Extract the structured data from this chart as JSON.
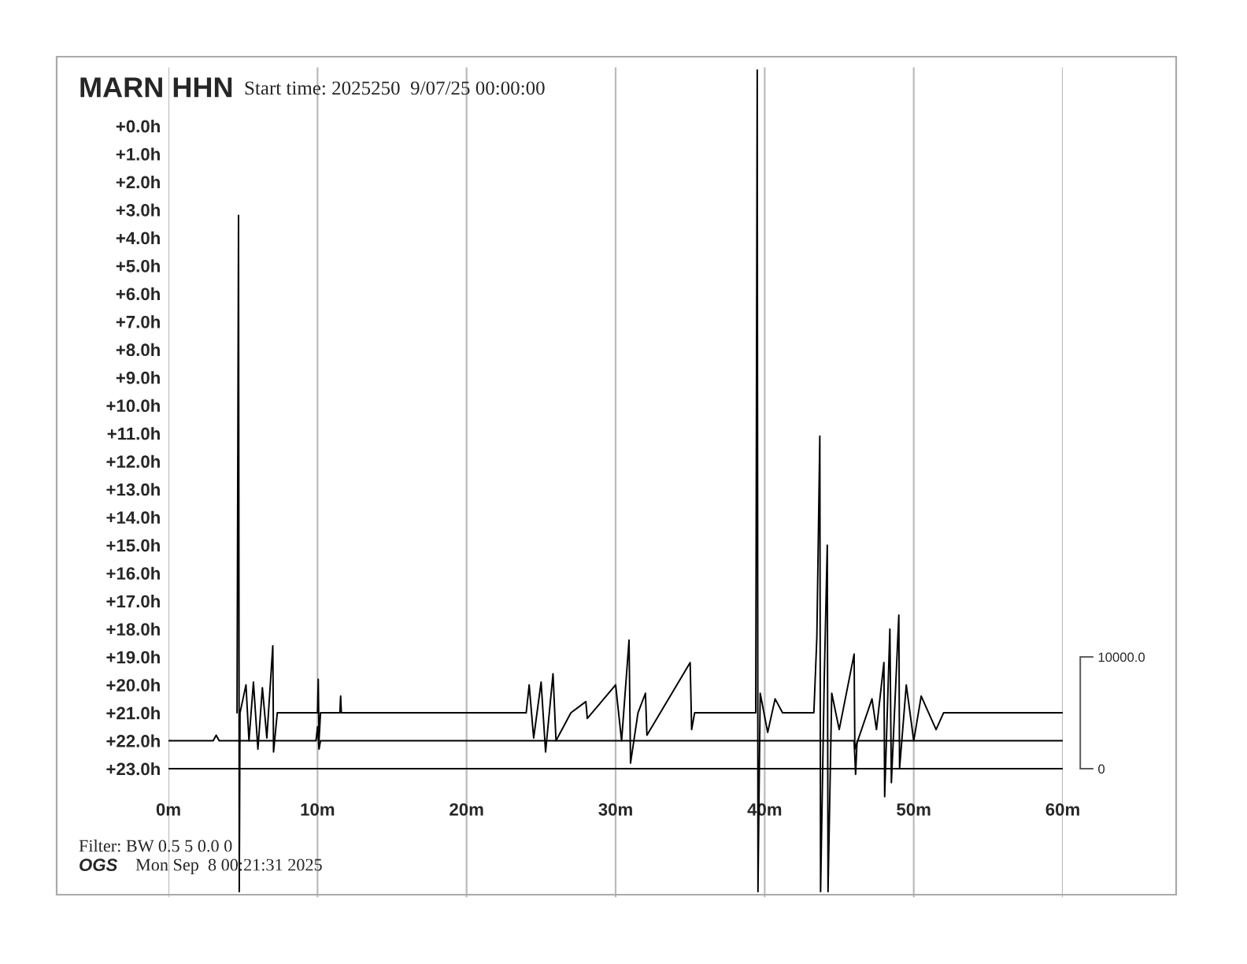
{
  "chart_data": {
    "type": "line",
    "title": "MARN HHN",
    "subtitle": "Start time: 2025250  9/07/25 00:00:00",
    "annotations": [
      "Filter: BW 0.5 5 0.0 0",
      "OGS",
      "Mon Sep  8 00:21:31 2025"
    ],
    "xlim": [
      0,
      60
    ],
    "xticks": [
      {
        "value": 0,
        "label": "0m"
      },
      {
        "value": 10,
        "label": "10m"
      },
      {
        "value": 20,
        "label": "20m"
      },
      {
        "value": 30,
        "label": "30m"
      },
      {
        "value": 40,
        "label": "40m"
      },
      {
        "value": 50,
        "label": "50m"
      },
      {
        "value": 60,
        "label": "60m"
      }
    ],
    "ylim": [
      27.6,
      -2.1
    ],
    "yticks": [
      {
        "value": 0,
        "label": "+0.0h"
      },
      {
        "value": 1,
        "label": "+1.0h"
      },
      {
        "value": 2,
        "label": "+2.0h"
      },
      {
        "value": 3,
        "label": "+3.0h"
      },
      {
        "value": 4,
        "label": "+4.0h"
      },
      {
        "value": 5,
        "label": "+5.0h"
      },
      {
        "value": 6,
        "label": "+6.0h"
      },
      {
        "value": 7,
        "label": "+7.0h"
      },
      {
        "value": 8,
        "label": "+8.0h"
      },
      {
        "value": 9,
        "label": "+9.0h"
      },
      {
        "value": 10,
        "label": "+10.0h"
      },
      {
        "value": 11,
        "label": "+11.0h"
      },
      {
        "value": 12,
        "label": "+12.0h"
      },
      {
        "value": 13,
        "label": "+13.0h"
      },
      {
        "value": 14,
        "label": "+14.0h"
      },
      {
        "value": 15,
        "label": "+15.0h"
      },
      {
        "value": 16,
        "label": "+16.0h"
      },
      {
        "value": 17,
        "label": "+17.0h"
      },
      {
        "value": 18,
        "label": "+18.0h"
      },
      {
        "value": 19,
        "label": "+19.0h"
      },
      {
        "value": 20,
        "label": "+20.0h"
      },
      {
        "value": 21,
        "label": "+21.0h"
      },
      {
        "value": 22,
        "label": "+22.0h"
      },
      {
        "value": 23,
        "label": "+23.0h"
      }
    ],
    "y2lim": [
      -11500,
      62750
    ],
    "y2ticks": [
      {
        "value": 0,
        "label": "0"
      },
      {
        "value": 10000,
        "label": "10000.0"
      }
    ],
    "grid": "x",
    "legend": false,
    "marker": "none",
    "line_style": "solid",
    "series": [
      {
        "color": "#000000",
        "x": [
          4.6,
          4.7,
          4.75,
          4.8,
          5.2,
          5.4,
          5.7,
          6.0,
          6.3,
          6.6,
          7.0,
          7.05,
          7.3,
          10.0,
          10.05,
          10.1,
          10.2,
          11.5,
          11.55,
          11.6,
          24.0,
          24.2,
          24.5,
          25.0,
          25.3,
          25.8,
          26.0,
          27.0,
          28.0,
          28.1,
          30.0,
          30.4,
          30.9,
          31.0,
          31.5,
          32.0,
          32.1,
          35.0,
          35.1,
          35.3,
          39.4,
          39.5,
          39.55,
          39.7,
          40.2,
          40.7,
          41.2,
          43.3,
          43.5,
          43.7,
          43.75,
          44.0,
          44.2,
          44.25,
          44.5,
          45.0,
          46.0,
          46.05,
          47.2,
          47.5,
          48.0,
          48.05,
          48.4,
          48.5,
          49.0,
          49.05,
          49.5,
          50.0,
          50.5,
          51.5,
          52.0,
          60.0
        ],
        "values": [
          21,
          3.2,
          27.4,
          21,
          20.0,
          22.0,
          19.9,
          22.3,
          20.1,
          21.9,
          18.6,
          22.4,
          21,
          21,
          19.8,
          22.0,
          21,
          21,
          20.4,
          21,
          21,
          20.0,
          21.9,
          19.9,
          22.4,
          19.6,
          22.0,
          21,
          20.6,
          21.2,
          20.0,
          22.0,
          18.4,
          22.8,
          21,
          20.3,
          21.8,
          19.2,
          21.6,
          21,
          21,
          -2.0,
          27.4,
          20.3,
          21.7,
          20.5,
          21,
          21,
          18.3,
          11.1,
          27.4,
          19.7,
          15.0,
          27.4,
          20.3,
          21.6,
          18.9,
          22.3,
          20.5,
          21.6,
          19.2,
          24.0,
          18.0,
          23.5,
          17.5,
          23.0,
          20.0,
          22.0,
          20.4,
          21.6,
          21,
          21
        ]
      },
      {
        "color": "#000000",
        "x": [
          0,
          3,
          3.2,
          3.4,
          9.9,
          10,
          10.1,
          10.2,
          46.0,
          46.1,
          46.2,
          60
        ],
        "values": [
          22,
          22,
          21.8,
          22,
          22,
          21.5,
          22.3,
          22,
          22,
          23.2,
          22,
          22
        ]
      },
      {
        "color": "#000000",
        "x": [
          0,
          60
        ],
        "values": [
          23,
          23
        ]
      }
    ]
  }
}
